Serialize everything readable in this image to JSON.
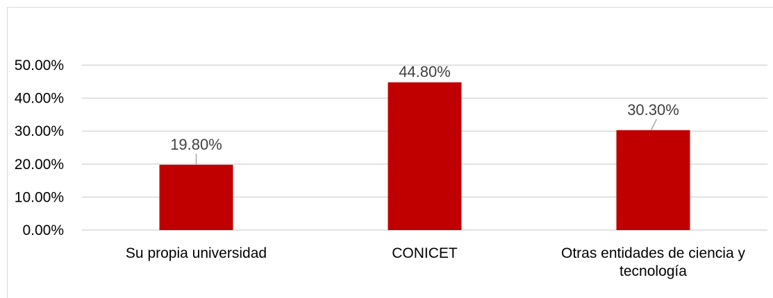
{
  "chart_data": {
    "type": "bar",
    "categories": [
      "Su propia universidad",
      "CONICET",
      "Otras entidades de ciencia y tecnología"
    ],
    "category_label_lines": [
      [
        "Su propia universidad"
      ],
      [
        "CONICET"
      ],
      [
        "Otras entidades de ciencia y",
        "tecnología"
      ]
    ],
    "values": [
      19.8,
      44.8,
      30.3
    ],
    "data_labels": [
      "19.80%",
      "44.80%",
      "30.30%"
    ],
    "y_ticks": [
      0,
      10,
      20,
      30,
      40,
      50
    ],
    "y_tick_labels": [
      "0.00%",
      "10.00%",
      "20.00%",
      "30.00%",
      "40.00%",
      "50.00%"
    ],
    "ylim": [
      0,
      50
    ],
    "title": "",
    "xlabel": "",
    "ylabel": "",
    "grid": true,
    "legend": "none",
    "bar_color": "#c00000",
    "grid_color": "#d9d9d9",
    "label_color": "#404040"
  }
}
